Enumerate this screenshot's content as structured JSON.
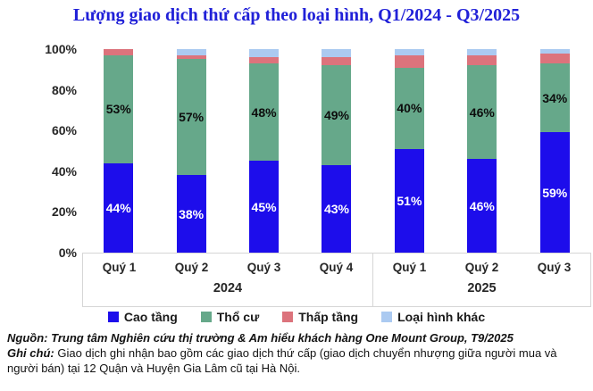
{
  "title": "Lượng giao dịch thứ cấp theo loại hình, Q1/2024 - Q3/2025",
  "colors": {
    "title": "#2121d8",
    "cao_tang": "#1d0deb",
    "tho_cu": "#66a88a",
    "thap_tang": "#dc737c",
    "loai_hinh_khac": "#abcaf1",
    "axis_border": "#d6d6d6"
  },
  "chart_data": {
    "type": "bar",
    "stacked": true,
    "unit": "%",
    "title": "Lượng giao dịch thứ cấp theo loại hình, Q1/2024 - Q3/2025",
    "categories": [
      "Quý 1",
      "Quý 2",
      "Quý 3",
      "Quý 4",
      "Quý 1",
      "Quý 2",
      "Quý 3"
    ],
    "groups": [
      {
        "year": "2024",
        "quarters": [
          "Quý 1",
          "Quý 2",
          "Quý 3",
          "Quý 4"
        ]
      },
      {
        "year": "2025",
        "quarters": [
          "Quý 1",
          "Quý 2",
          "Quý 3"
        ]
      }
    ],
    "series": [
      {
        "key": "cao-tang",
        "name": "Cao tầng",
        "color": "#1d0deb",
        "values": [
          44,
          38,
          45,
          43,
          51,
          46,
          59
        ],
        "labels": [
          "44%",
          "38%",
          "45%",
          "43%",
          "51%",
          "46%",
          "59%"
        ],
        "label_color": "#ffffff"
      },
      {
        "key": "tho-cu",
        "name": "Thổ cư",
        "color": "#66a88a",
        "values": [
          53,
          57,
          48,
          49,
          40,
          46,
          34
        ],
        "labels": [
          "53%",
          "57%",
          "48%",
          "49%",
          "40%",
          "46%",
          "34%"
        ],
        "label_color": "#0d0d0d"
      },
      {
        "key": "thap-tang",
        "name": "Thấp tầng",
        "color": "#dc737c",
        "values": [
          3,
          2,
          3,
          4,
          6,
          5,
          5
        ],
        "labels": null,
        "label_color": null
      },
      {
        "key": "loai-hinh-khac",
        "name": "Loại hình khác",
        "color": "#abcaf1",
        "values": [
          0,
          3,
          4,
          4,
          3,
          3,
          2
        ],
        "labels": null,
        "label_color": null
      }
    ],
    "ylim": [
      0,
      100
    ],
    "yticks": [
      "0%",
      "20%",
      "40%",
      "60%",
      "80%",
      "100%"
    ],
    "grid": false,
    "legend_position": "bottom"
  },
  "legend": {
    "items": [
      {
        "key": "cao-tang",
        "label": "Cao tầng",
        "color": "#1d0deb"
      },
      {
        "key": "tho-cu",
        "label": "Thổ cư",
        "color": "#66a88a"
      },
      {
        "key": "thap-tang",
        "label": "Thấp tầng",
        "color": "#dc737c"
      },
      {
        "key": "loai-hinh-khac",
        "label": "Loại hình khác",
        "color": "#abcaf1"
      }
    ]
  },
  "footer": {
    "source_label": "Nguồn:",
    "source_text": "Trung tâm Nghiên cứu thị trường & Am hiểu khách hàng One Mount Group, T9/2025",
    "note_label": "Ghi chú:",
    "note_text": "Giao dịch ghi nhận bao gồm các giao dịch thứ cấp (giao dịch chuyển nhượng giữa người mua và người bán) tại 12 Quận và Huyện Gia Lâm cũ tại Hà Nội."
  }
}
